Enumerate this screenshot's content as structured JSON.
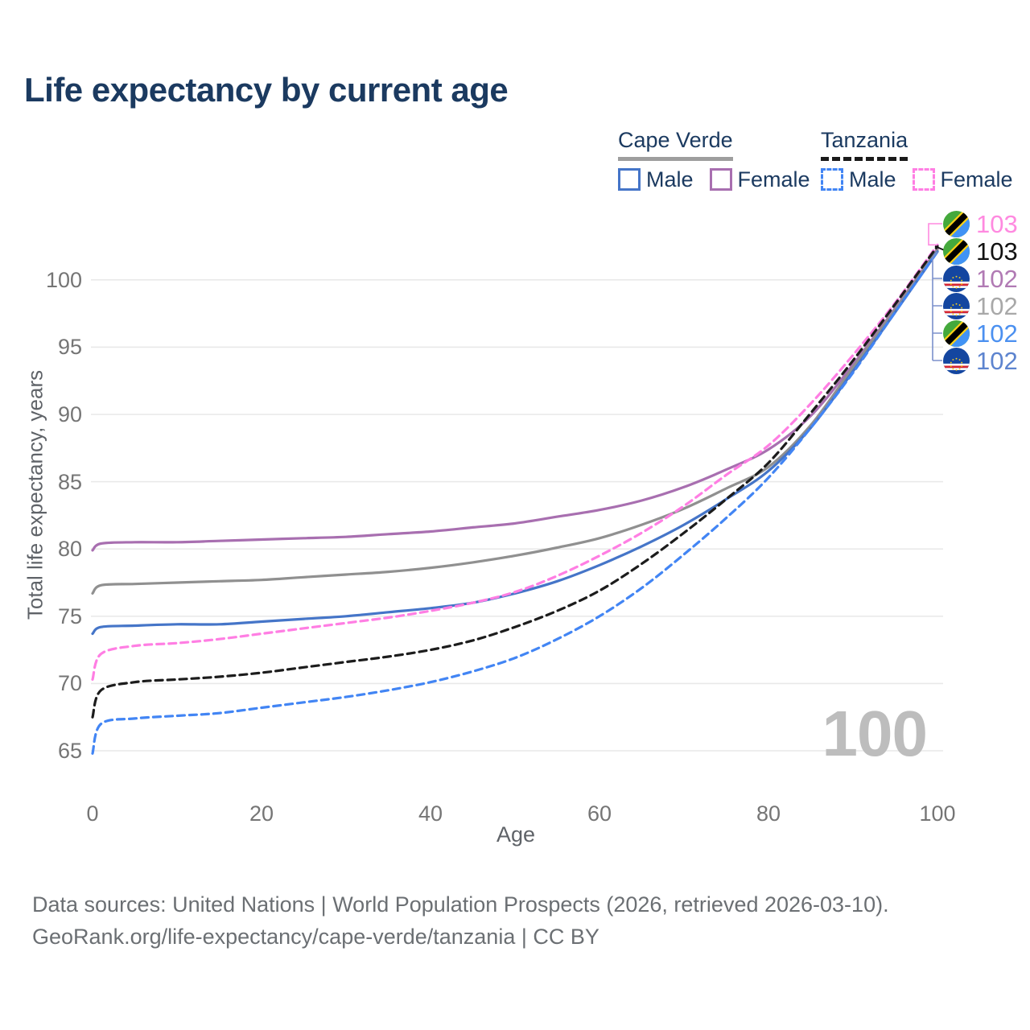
{
  "title": "Life expectancy by current age",
  "watermark": "100",
  "colors": {
    "title_text": "#1b3a60",
    "tick_text": "#757575",
    "axis_label_text": "#5f6368",
    "grid_line": "#e9e9e9",
    "footer_text": "#6b6f73",
    "watermark_text": "#bdbdbd"
  },
  "legend": {
    "groups": [
      {
        "name": "Cape Verde",
        "line_style": "solid",
        "underline_color": "#9e9e9e",
        "items": [
          {
            "label": "Male",
            "color": "#4575c8",
            "dashed": false
          },
          {
            "label": "Female",
            "color": "#a86fb0",
            "dashed": false
          }
        ]
      },
      {
        "name": "Tanzania",
        "line_style": "dashed",
        "underline_color": "#1a1a1a",
        "items": [
          {
            "label": "Male",
            "color": "#4285f4",
            "dashed": true
          },
          {
            "label": "Female",
            "color": "#ff7ee3",
            "dashed": true
          }
        ]
      }
    ]
  },
  "chart_data": {
    "type": "line",
    "title": "Life expectancy by current age",
    "xlabel": "Age",
    "ylabel": "Total life expectancy, years",
    "grid": "horizontal",
    "legend_position": "top-right",
    "x_axis": {
      "label": "Age",
      "ticks": [
        0,
        20,
        40,
        60,
        80,
        100
      ],
      "range": [
        0,
        100
      ]
    },
    "y_axis": {
      "label": "Total life expectancy, years",
      "ticks": [
        65,
        70,
        75,
        80,
        85,
        90,
        95,
        100
      ],
      "range": [
        63,
        104
      ]
    },
    "x": [
      0,
      1,
      5,
      10,
      15,
      20,
      25,
      30,
      35,
      40,
      45,
      50,
      55,
      60,
      65,
      70,
      75,
      80,
      85,
      90,
      95,
      100
    ],
    "series": [
      {
        "name": "Cape Verde Female",
        "country": "Cape Verde",
        "sex": "Female",
        "color": "#a86fb0",
        "dashed": false,
        "values": [
          79.9,
          80.4,
          80.5,
          80.5,
          80.6,
          80.7,
          80.8,
          80.9,
          81.1,
          81.3,
          81.6,
          81.9,
          82.4,
          82.9,
          83.6,
          84.6,
          85.9,
          87.4,
          89.9,
          93.7,
          97.9,
          102.3
        ]
      },
      {
        "name": "Cape Verde",
        "country": "Cape Verde",
        "sex": "Both",
        "color": "#909090",
        "dashed": false,
        "values": [
          76.7,
          77.3,
          77.4,
          77.5,
          77.6,
          77.7,
          77.9,
          78.1,
          78.3,
          78.6,
          79.0,
          79.5,
          80.1,
          80.8,
          81.8,
          83.0,
          84.5,
          86.1,
          89.2,
          93.5,
          97.8,
          102.2
        ]
      },
      {
        "name": "Cape Verde Male",
        "country": "Cape Verde",
        "sex": "Male",
        "color": "#4575c8",
        "dashed": false,
        "values": [
          73.7,
          74.2,
          74.3,
          74.4,
          74.4,
          74.6,
          74.8,
          75.0,
          75.3,
          75.6,
          76.0,
          76.7,
          77.6,
          78.8,
          80.2,
          81.8,
          83.7,
          85.8,
          89.0,
          93.2,
          97.6,
          102.1
        ]
      },
      {
        "name": "Tanzania Female",
        "country": "Tanzania",
        "sex": "Female",
        "color": "#ff7ee3",
        "dashed": true,
        "values": [
          70.3,
          72.2,
          72.8,
          73.0,
          73.3,
          73.7,
          74.1,
          74.5,
          74.9,
          75.4,
          76.0,
          76.8,
          78.0,
          79.5,
          81.2,
          83.2,
          85.5,
          87.7,
          90.8,
          94.4,
          98.3,
          102.6
        ]
      },
      {
        "name": "Tanzania",
        "country": "Tanzania",
        "sex": "Both",
        "color": "#1c1c1c",
        "dashed": true,
        "values": [
          67.5,
          69.5,
          70.1,
          70.3,
          70.5,
          70.8,
          71.2,
          71.6,
          72.0,
          72.5,
          73.2,
          74.2,
          75.4,
          76.9,
          78.9,
          81.2,
          83.7,
          86.4,
          90.1,
          94.0,
          98.2,
          102.5
        ]
      },
      {
        "name": "Tanzania Male",
        "country": "Tanzania",
        "sex": "Male",
        "color": "#4285f4",
        "dashed": true,
        "values": [
          64.8,
          67.0,
          67.4,
          67.6,
          67.8,
          68.2,
          68.6,
          69.0,
          69.5,
          70.1,
          70.9,
          71.9,
          73.3,
          75.0,
          77.1,
          79.6,
          82.3,
          85.3,
          89.0,
          93.1,
          97.6,
          102.1
        ]
      }
    ],
    "end_labels": [
      {
        "value": "103",
        "series": "Tanzania Female",
        "flag": "tanzania",
        "text_color": "#ff8ae0"
      },
      {
        "value": "103",
        "series": "Tanzania",
        "flag": "tanzania",
        "text_color": "#111111"
      },
      {
        "value": "102",
        "series": "Cape Verde Female",
        "flag": "cape-verde",
        "text_color": "#b17ab4"
      },
      {
        "value": "102",
        "series": "Cape Verde",
        "flag": "cape-verde",
        "text_color": "#a8a8a8"
      },
      {
        "value": "102",
        "series": "Tanzania Male",
        "flag": "tanzania",
        "text_color": "#4b90f0"
      },
      {
        "value": "102",
        "series": "Cape Verde Male",
        "flag": "cape-verde",
        "text_color": "#5d84cf"
      }
    ]
  },
  "footer": {
    "line1": "Data sources: United Nations | World Population Prospects (2026, retrieved 2026-03-10).",
    "line2": "GeoRank.org/life-expectancy/cape-verde/tanzania | CC BY"
  }
}
